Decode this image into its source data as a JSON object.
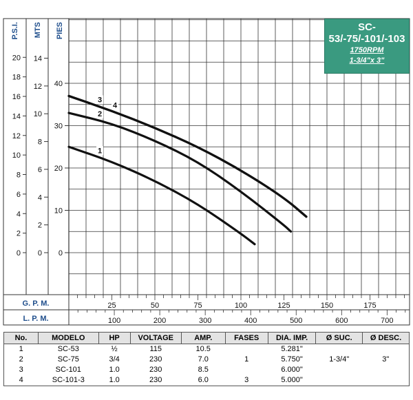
{
  "chart_data": {
    "type": "line",
    "title": "SC-53/-75/-101/-103",
    "subtitle": "1750RPM",
    "subtitle2": "1-3/4\"x 3\"",
    "xlabel": "G. P. M.",
    "xlabel2": "L. P. M.",
    "ylabel_psi": "P.S.I.",
    "ylabel_mts": "MTS",
    "ylabel_pies": "PIES",
    "gpm_ticks": [
      "25",
      "50",
      "75",
      "100",
      "125",
      "150",
      "175"
    ],
    "lpm_ticks": [
      "100",
      "200",
      "300",
      "400",
      "500",
      "600",
      "700"
    ],
    "psi_ticks": [
      "0",
      "2",
      "4",
      "6",
      "8",
      "10",
      "12",
      "14",
      "16",
      "18",
      "20"
    ],
    "mts_ticks": [
      "0",
      "2",
      "4",
      "6",
      "8",
      "10",
      "12",
      "14"
    ],
    "pies_ticks": [
      "0",
      "10",
      "20",
      "30",
      "40"
    ],
    "xlim": [
      0,
      200
    ],
    "ylim": [
      -10,
      50
    ],
    "grid": true,
    "series": [
      {
        "name": "1",
        "x": [
          0,
          25,
          50,
          75,
          100,
          108
        ],
        "y": [
          25,
          21.5,
          17,
          11.5,
          4.5,
          2
        ]
      },
      {
        "name": "2",
        "x": [
          0,
          25,
          50,
          75,
          100,
          125,
          129
        ],
        "y": [
          33,
          30.5,
          26.5,
          21.5,
          14.5,
          6.5,
          5
        ]
      },
      {
        "name": "3",
        "x": [
          0,
          25,
          50,
          75,
          100,
          125,
          138
        ],
        "y": [
          37,
          33.5,
          29.5,
          25,
          19.5,
          13,
          8.5
        ]
      },
      {
        "name": "4",
        "x": [
          0,
          25,
          50,
          75,
          100,
          125,
          138
        ],
        "y": [
          37,
          33.5,
          29.5,
          25,
          19.5,
          13,
          8.5
        ]
      }
    ]
  },
  "table": {
    "headers": [
      "No.",
      "MODELO",
      "HP",
      "VOLTAGE",
      "AMP.",
      "FASES",
      "DIA. IMP.",
      "Ø SUC.",
      "Ø DESC."
    ],
    "rows": [
      [
        "1",
        "SC-53",
        "½",
        "115",
        "10.5",
        "",
        "5.281\"",
        "",
        ""
      ],
      [
        "2",
        "SC-75",
        "3/4",
        "230",
        "7.0",
        "1",
        "5.750\"",
        "1-3/4\"",
        "3\""
      ],
      [
        "3",
        "SC-101",
        "1.0",
        "230",
        "8.5",
        "",
        "6.000\"",
        "",
        ""
      ],
      [
        "4",
        "SC-101-3",
        "1.0",
        "230",
        "6.0",
        "3",
        "5.000\"",
        "",
        ""
      ]
    ]
  }
}
